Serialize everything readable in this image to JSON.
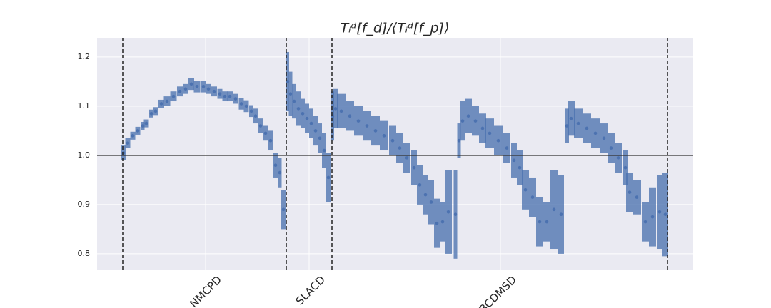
{
  "chart_data": {
    "type": "errorbar",
    "title": "Tᵢᵈ[f_d]/⟨Tᵢᵈ[f_p]⟩",
    "xlim": [
      0,
      167
    ],
    "ylim": [
      0.768,
      1.239
    ],
    "yticks": [
      0.8,
      0.9,
      {
        "value": 1.0,
        "label": "1.0"
      },
      1.1,
      1.2
    ],
    "xticks": [
      {
        "value": 30.4,
        "label": "NMCPD"
      },
      {
        "value": 59.4,
        "label": "SLACD"
      },
      {
        "value": 113,
        "label": "BCDMSD"
      }
    ],
    "vlines": [
      7.2,
      53,
      65.8,
      159.8
    ],
    "hline": 1,
    "grid": true,
    "series": [
      {
        "color": "#4c72b0",
        "x": [
          7.4,
          8.6,
          10,
          11.4,
          12.8,
          13.8,
          15.2,
          16.4,
          18,
          19.6,
          21.4,
          23.2,
          24.8,
          26.4,
          28,
          29.8,
          31.2,
          32.8,
          34.4,
          35.8,
          37.2,
          38.8,
          40.4,
          41.8,
          43.2,
          44.4,
          45.8,
          47.2,
          48.6,
          50,
          51.2,
          52.2,
          53.4,
          54.2,
          55.2,
          56.4,
          57.6,
          58.8,
          60,
          61.2,
          62.4,
          63.6,
          64.8,
          66,
          66.8,
          68.4,
          70.8,
          73.2,
          75.6,
          78,
          80.4,
          82.8,
          84.8,
          86.8,
          88.8,
          90.4,
          92,
          93.6,
          95.2,
          96.8,
          98.4,
          100.4,
          101.4,
          102.4,
          104,
          106,
          108,
          110,
          112.4,
          114.8,
          116.8,
          118.4,
          120,
          122,
          124,
          126,
          128,
          130,
          131.6,
          132.8,
          134.8,
          137.2,
          139.6,
          142,
          144,
          146,
          148,
          149.2,
          151.2,
          153.6,
          155.6,
          157.6,
          159.2
        ],
        "values": [
          1.005,
          1.025,
          1.04,
          1.05,
          1.06,
          1.065,
          1.085,
          1.09,
          1.105,
          1.11,
          1.12,
          1.13,
          1.135,
          1.145,
          1.14,
          1.14,
          1.135,
          1.13,
          1.125,
          1.12,
          1.12,
          1.115,
          1.105,
          1.1,
          1.09,
          1.08,
          1.06,
          1.045,
          1.03,
          0.98,
          0.965,
          0.89,
          1.15,
          1.125,
          1.11,
          1.095,
          1.085,
          1.075,
          1.065,
          1.05,
          1.035,
          1.01,
          0.955,
          1.08,
          1.095,
          1.09,
          1.08,
          1.07,
          1.06,
          1.05,
          1.04,
          1.03,
          1.015,
          0.995,
          0.975,
          0.94,
          0.92,
          0.905,
          0.862,
          0.865,
          0.885,
          0.88,
          1.03,
          1.07,
          1.08,
          1.07,
          1.055,
          1.045,
          1.03,
          1.015,
          0.99,
          0.975,
          0.93,
          0.915,
          0.865,
          0.865,
          0.89,
          0.88,
          1.06,
          1.075,
          1.065,
          1.055,
          1.045,
          1.035,
          1.015,
          0.995,
          0.975,
          0.925,
          0.915,
          0.865,
          0.875,
          0.885,
          0.88
        ],
        "errors": [
          0.015,
          0.01,
          0.008,
          0.008,
          0.008,
          0.008,
          0.008,
          0.008,
          0.008,
          0.01,
          0.01,
          0.01,
          0.01,
          0.012,
          0.012,
          0.012,
          0.01,
          0.01,
          0.01,
          0.01,
          0.01,
          0.01,
          0.012,
          0.012,
          0.012,
          0.015,
          0.015,
          0.015,
          0.02,
          0.025,
          0.03,
          0.04,
          0.06,
          0.045,
          0.035,
          0.035,
          0.03,
          0.03,
          0.03,
          0.03,
          0.03,
          0.035,
          0.05,
          0.05,
          0.04,
          0.035,
          0.03,
          0.03,
          0.03,
          0.03,
          0.03,
          0.03,
          0.03,
          0.03,
          0.035,
          0.04,
          0.04,
          0.045,
          0.05,
          0.04,
          0.085,
          0.09,
          0.035,
          0.04,
          0.035,
          0.03,
          0.03,
          0.03,
          0.03,
          0.03,
          0.035,
          0.035,
          0.04,
          0.04,
          0.05,
          0.04,
          0.08,
          0.08,
          0.035,
          0.035,
          0.03,
          0.03,
          0.03,
          0.03,
          0.03,
          0.03,
          0.035,
          0.04,
          0.035,
          0.04,
          0.06,
          0.075,
          0.085
        ]
      }
    ]
  }
}
